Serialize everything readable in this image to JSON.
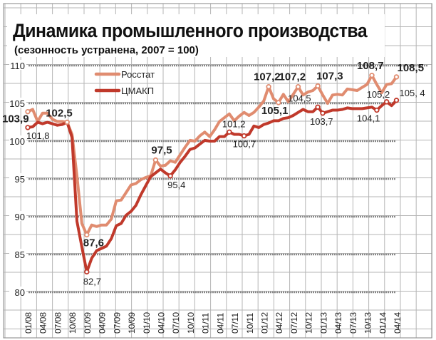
{
  "title": "Динамика промышленного производства",
  "subtitle": "(сезонность устранена, 2007 =  100)",
  "colors": {
    "rosstat": "#e08c70",
    "cmakp": "#c0392b",
    "grid": "#b5b5b5",
    "dotted": "#888888"
  },
  "chart_data": {
    "type": "line",
    "title": "Динамика промышленного производства",
    "subtitle": "(сезонность устранена, 2007 =  100)",
    "xlabel": "",
    "ylabel": "",
    "ylim": [
      80,
      110
    ],
    "yticks": [
      "80",
      "85",
      "90",
      "95",
      "100",
      "105",
      "110"
    ],
    "xtick_labels": [
      "01/08",
      "04/08",
      "07/08",
      "10/08",
      "01/09",
      "04/09",
      "07/09",
      "10/09",
      "01/10",
      "04/10",
      "07/10",
      "10/10",
      "01/11",
      "04/11",
      "07/11",
      "10/11",
      "01/12",
      "04/12",
      "07/12",
      "10/12",
      "01/13",
      "04/13",
      "07/13",
      "10/13",
      "01/14",
      "04/14"
    ],
    "x_range_months": "01/08 – 04/14 (monthly)",
    "legend": {
      "placement": "top-left",
      "entries": [
        "Росстат",
        "ЦМАКП"
      ]
    },
    "series": [
      {
        "name": "Росстат",
        "values": [
          103.9,
          104.2,
          102.6,
          103.7,
          103.7,
          102.9,
          102.6,
          102.6,
          102.5,
          100.9,
          95.4,
          89.1,
          87.6,
          88.9,
          88.7,
          88.9,
          88.9,
          89.7,
          92.1,
          92.2,
          93.2,
          94.2,
          94.4,
          94.9,
          95.2,
          95.4,
          97.5,
          96.7,
          96.8,
          97.4,
          97.2,
          98.2,
          99.2,
          100.1,
          100.0,
          100.7,
          101.2,
          100.6,
          101.5,
          102.6,
          103.1,
          103.6,
          102.7,
          103.3,
          103.8,
          103.4,
          103.8,
          104.5,
          105.3,
          107.2,
          105.6,
          105.1,
          106.2,
          105.2,
          106.2,
          107.2,
          106.1,
          106.5,
          106.7,
          107.3,
          106.1,
          105.0,
          106.1,
          106.2,
          106.1,
          106.9,
          106.8,
          106.7,
          107.1,
          107.5,
          108.7,
          107.5,
          106.4,
          107.5,
          107.6,
          108.5
        ]
      },
      {
        "name": "ЦМАКП",
        "values": [
          101.8,
          101.9,
          102.5,
          102.3,
          102.5,
          102.3,
          102.1,
          102.2,
          102.5,
          100.5,
          89.4,
          86.0,
          82.7,
          84.5,
          85.5,
          85.8,
          86.1,
          87.1,
          88.8,
          89.1,
          90.2,
          90.7,
          91.5,
          92.9,
          94.1,
          95.3,
          95.8,
          96.3,
          95.8,
          95.4,
          96.2,
          97.2,
          98.0,
          98.9,
          99.1,
          99.6,
          100.1,
          100.0,
          100.0,
          100.6,
          100.6,
          101.2,
          100.9,
          100.9,
          100.7,
          100.9,
          102.0,
          101.8,
          102.2,
          102.4,
          102.7,
          102.7,
          103.0,
          103.1,
          103.4,
          103.8,
          104.2,
          103.9,
          103.9,
          104.5,
          103.7,
          103.9,
          104.1,
          104.1,
          104.2,
          104.4,
          104.3,
          104.3,
          104.3,
          104.4,
          104.5,
          104.1,
          104.7,
          105.2,
          104.7,
          105.4
        ]
      }
    ],
    "annotations": [
      {
        "series": 0,
        "month": 0,
        "label": "103,9"
      },
      {
        "series": 1,
        "month": 0,
        "label": "101,8"
      },
      {
        "series": 0,
        "month": 8,
        "label": "102,5"
      },
      {
        "series": 0,
        "month": 12,
        "label": "87,6"
      },
      {
        "series": 1,
        "month": 12,
        "label": "82,7"
      },
      {
        "series": 0,
        "month": 26,
        "label": "97,5"
      },
      {
        "series": 1,
        "month": 29,
        "label": "95,4"
      },
      {
        "series": 1,
        "month": 41,
        "label": "101,2"
      },
      {
        "series": 1,
        "month": 44,
        "label": "100,7"
      },
      {
        "series": 0,
        "month": 49,
        "label": "107,2"
      },
      {
        "series": 0,
        "month": 51,
        "label": "105,1"
      },
      {
        "series": 0,
        "month": 55,
        "label": "107,2"
      },
      {
        "series": 1,
        "month": 59,
        "label": "104,5"
      },
      {
        "series": 0,
        "month": 59,
        "label": "107,3"
      },
      {
        "series": 1,
        "month": 60,
        "label": "103,7"
      },
      {
        "series": 0,
        "month": 70,
        "label": "108,7"
      },
      {
        "series": 1,
        "month": 71,
        "label": "104,1"
      },
      {
        "series": 1,
        "month": 73,
        "label": "105,2"
      },
      {
        "series": 0,
        "month": 75,
        "label": "108,5"
      },
      {
        "series": 1,
        "month": 75,
        "label": "105, 4"
      }
    ]
  }
}
